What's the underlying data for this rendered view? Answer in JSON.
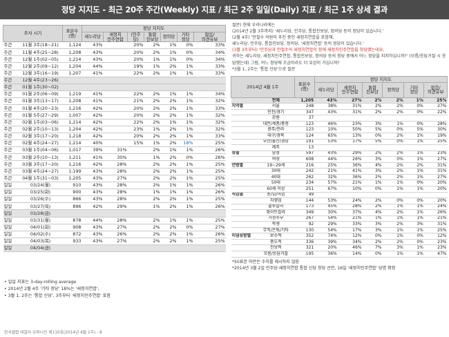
{
  "title": "정당 지지도 - 최근 20주 주간(Weekly) 지표 / 최근 2주 일일(Daily) 지표 / 최근 1주 상세 결과",
  "left_table": {
    "header": {
      "period": "조사 시기",
      "base": "표본수\n(명)",
      "group": "정당 지지도",
      "cols": [
        "새누리당",
        "새정치\n민주연합",
        "(민주당)",
        "통합\n진보당",
        "정의당",
        "기타\n정당",
        "없음/\n의견유보"
      ]
    },
    "rows": [
      {
        "type": "주간",
        "date": "11월 3주(18~21)",
        "base": "1,124",
        "v": [
          "43%",
          "",
          "20%",
          "2%",
          "1%",
          "0%",
          "33%"
        ]
      },
      {
        "type": "주간",
        "date": "11월 4주(25~28)",
        "base": "1,208",
        "v": [
          "43%",
          "",
          "20%",
          "2%",
          "1%",
          "0%",
          "34%"
        ]
      },
      {
        "type": "주간",
        "date": "12월 1주(02~05)",
        "base": "1,214",
        "v": [
          "43%",
          "",
          "20%",
          "1%",
          "1%",
          "0%",
          "34%"
        ]
      },
      {
        "type": "주간",
        "date": "12월 2주(09~12)",
        "base": "1,204",
        "v": [
          "44%",
          "",
          "19%",
          "1%",
          "2%",
          "1%",
          "33%"
        ]
      },
      {
        "type": "주간",
        "date": "12월 3주(16~19)",
        "base": "1,207",
        "v": [
          "41%",
          "",
          "22%",
          "2%",
          "1%",
          "1%",
          "33%"
        ]
      },
      {
        "type": "주간",
        "date": "12월 4주(23~26)",
        "base": "",
        "v": [
          "",
          "",
          "",
          "",
          "",
          "",
          ""
        ],
        "gray": true
      },
      {
        "type": "주간",
        "date": "01월 1주(30~02)",
        "base": "",
        "v": [
          "",
          "",
          "",
          "",
          "",
          "",
          ""
        ],
        "gray": true
      },
      {
        "type": "주간",
        "date": "01월 2주(06~09)",
        "base": "1,219",
        "v": [
          "41%",
          "",
          "22%",
          "2%",
          "1%",
          "1%",
          "34%"
        ]
      },
      {
        "type": "주간",
        "date": "01월 3주(13~17)",
        "base": "1,208",
        "v": [
          "41%",
          "",
          "21%",
          "2%",
          "2%",
          "1%",
          "32%"
        ]
      },
      {
        "type": "주간",
        "date": "01월 4주(20~23)",
        "base": "1,216",
        "v": [
          "42%",
          "",
          "20%",
          "2%",
          "2%",
          "1%",
          "33%"
        ]
      },
      {
        "type": "주간",
        "date": "01월 5주(27~29)",
        "base": "1,007",
        "v": [
          "42%",
          "",
          "20%",
          "2%",
          "2%",
          "1%",
          "32%"
        ]
      },
      {
        "type": "주간",
        "date": "02월 1주(03~06)",
        "base": "1,214",
        "v": [
          "42%",
          "",
          "22%",
          "2%",
          "1%",
          "1%",
          "32%"
        ]
      },
      {
        "type": "주간",
        "date": "02월 2주(10~13)",
        "base": "1,204",
        "v": [
          "42%",
          "",
          "23%",
          "1%",
          "2%",
          "1%",
          "32%"
        ]
      },
      {
        "type": "주간",
        "date": "02월 3주(17~20)",
        "base": "1,218",
        "v": [
          "42%",
          "",
          "20%",
          "2%",
          "2%",
          "1%",
          "33%"
        ]
      },
      {
        "type": "주간",
        "date": "02월 4주(24~27)",
        "base": "1,214",
        "v": [
          "40%",
          "",
          "15%",
          "1%",
          "2%",
          "18%",
          "25%"
        ],
        "hl": 5
      },
      {
        "type": "주간",
        "date": "03월 1주(04~06)",
        "base": "1,017",
        "v": [
          "39%",
          "31%",
          "",
          "2%",
          "1%",
          "1%",
          "26%"
        ],
        "sep": true
      },
      {
        "type": "주간",
        "date": "03월 2주(10~13)",
        "base": "1,211",
        "v": [
          "41%",
          "30%",
          "",
          "1%",
          "2%",
          "0%",
          "26%"
        ]
      },
      {
        "type": "주간",
        "date": "03월 3주(17~20)",
        "base": "1,216",
        "v": [
          "42%",
          "28%",
          "",
          "2%",
          "2%",
          "1%",
          "25%"
        ]
      },
      {
        "type": "주간",
        "date": "03월 4주(24~27)",
        "base": "1,199",
        "v": [
          "43%",
          "28%",
          "",
          "2%",
          "2%",
          "1%",
          "25%"
        ]
      },
      {
        "type": "주간",
        "date": "04월 1주(31~03)",
        "base": "1,205",
        "v": [
          "43%",
          "27%",
          "",
          "2%",
          "2%",
          "1%",
          "25%"
        ]
      },
      {
        "type": "일일",
        "date": "03/24(월)",
        "base": "910",
        "v": [
          "43%",
          "28%",
          "",
          "2%",
          "1%",
          "1%",
          "26%"
        ],
        "sep": true
      },
      {
        "type": "일일",
        "date": "03/25(화)",
        "base": "900",
        "v": [
          "43%",
          "28%",
          "",
          "1%",
          "1%",
          "1%",
          "26%"
        ]
      },
      {
        "type": "일일",
        "date": "03/26(수)",
        "base": "866",
        "v": [
          "43%",
          "28%",
          "",
          "2%",
          "2%",
          "1%",
          "25%"
        ]
      },
      {
        "type": "일일",
        "date": "03/27(목)",
        "base": "896",
        "v": [
          "42%",
          "29%",
          "",
          "1%",
          "2%",
          "1%",
          "26%"
        ]
      },
      {
        "type": "일일",
        "date": "03/28(금)",
        "base": "",
        "v": [
          "",
          "",
          "",
          "",
          "",
          "",
          ""
        ],
        "gray": true
      },
      {
        "type": "일일",
        "date": "03/31(월)",
        "base": "878",
        "v": [
          "44%",
          "28%",
          "",
          "2%",
          "1%",
          "1%",
          "25%"
        ],
        "sep": true
      },
      {
        "type": "일일",
        "date": "04/01(화)",
        "base": "908",
        "v": [
          "43%",
          "27%",
          "",
          "2%",
          "2%",
          "0%",
          "27%"
        ]
      },
      {
        "type": "일일",
        "date": "04/02(수)",
        "base": "872",
        "v": [
          "43%",
          "26%",
          "",
          "2%",
          "2%",
          "1%",
          "26%"
        ]
      },
      {
        "type": "일일",
        "date": "04/03(목)",
        "base": "933",
        "v": [
          "43%",
          "27%",
          "",
          "2%",
          "2%",
          "1%",
          "25%"
        ]
      },
      {
        "type": "일일",
        "date": "04/04(금)",
        "base": "",
        "v": [
          "",
          "",
          "",
          "",
          "",
          "",
          ""
        ],
        "gray": true
      }
    ]
  },
  "left_notes": [
    "• 일일 지표는 3-day-rolling average",
    "• 2014년 2월 4주 '기타 정당' 18%는 '새정치연합',",
    "• 3월 1, 2주는 '통합 신당', 3주부터 '새정치민주연합' 포함"
  ],
  "credit": "한국갤럽 데일리 오피니언 제110호(2014년 4월 1주) - 8",
  "right_notes": [
    {
      "text": "질문) 현재 우리나라에는",
      "red": false
    },
    {
      "text": "(2014년 2월 3주까지) '새누리당, 민주당, 통합진보당, 정의당 등의 정당이 있습니다.'",
      "red": false
    },
    {
      "text": "(2월 4주) '안철수 의원이 추진 중인 새정치연합을 포함해,",
      "red": false
    },
    {
      "text": "새누리당, 민주당, 통합진보당, 정의당, '새정치연합' 등의 정당이 있습니다.'",
      "red": false
    },
    {
      "text": "(3월 3주부터) '민주당과 안철수의 새정치연합이 함께 새정치민주연합을 창당했는데요,",
      "red": true
    },
    {
      "text": "귀하는 새누리당, 새정치민주연합, 통합진보당, 정의당 등의 정당 중에서 어느 정당을 지지하십니까?' (모름/응답거절 시 응답했는데) 그럼, 어느 정당에 조금이라도 더 호감이 가십니까?",
      "red": false
    },
    {
      "text": "*3월 1, 2주는 '통합 신당'으로 질문",
      "red": false
    }
  ],
  "right_table": {
    "header": {
      "period": "2014년 4월 1주",
      "base": "표본수\n(명)",
      "group": "정당 지지도",
      "cols": [
        "새누리당",
        "새정치\n민주연합",
        "통합\n진보당",
        "정의당",
        "기타\n정당",
        "없음/\n의견유보"
      ]
    },
    "rows": [
      {
        "g": "",
        "s": "전체",
        "base": "1,205",
        "v": [
          "43%",
          "27%",
          "2%",
          "2%",
          "1%",
          "25%"
        ],
        "total": true
      },
      {
        "g": "지역별",
        "s": "서울",
        "base": "248",
        "v": [
          "38%",
          "31%",
          "2%",
          "2%",
          "0%",
          "27%"
        ]
      },
      {
        "g": "",
        "s": "인천/경기",
        "base": "347",
        "v": [
          "43%",
          "31%",
          "2%",
          "2%",
          "0%",
          "22%"
        ]
      },
      {
        "g": "",
        "s": "강원",
        "base": "37",
        "v": [
          "",
          "",
          "",
          "",
          "",
          ""
        ]
      },
      {
        "g": "",
        "s": "대전/세종/충청",
        "base": "123",
        "v": [
          "46%",
          "23%",
          "3%",
          "1%",
          "0%",
          "28%"
        ]
      },
      {
        "g": "",
        "s": "광주/전라",
        "base": "123",
        "v": [
          "10%",
          "50%",
          "5%",
          "0%",
          "5%",
          "30%"
        ]
      },
      {
        "g": "",
        "s": "대구/경북",
        "base": "124",
        "v": [
          "65%",
          "13%",
          "0%",
          "2%",
          "1%",
          "19%"
        ]
      },
      {
        "g": "",
        "s": "부산/울산/경남",
        "base": "191",
        "v": [
          "53%",
          "17%",
          "5%",
          "0%",
          "1%",
          "25%"
        ]
      },
      {
        "g": "",
        "s": "제주",
        "base": "13",
        "v": [
          "",
          "",
          "",
          "",
          "",
          ""
        ]
      },
      {
        "g": "성별",
        "s": "남성",
        "base": "597",
        "v": [
          "43%",
          "29%",
          "2%",
          "2%",
          "1%",
          "23%"
        ],
        "sep": true
      },
      {
        "g": "",
        "s": "여성",
        "base": "608",
        "v": [
          "44%",
          "26%",
          "3%",
          "0%",
          "1%",
          "27%"
        ]
      },
      {
        "g": "연령별",
        "s": "19~29세",
        "base": "216",
        "v": [
          "25%",
          "36%",
          "4%",
          "2%",
          "2%",
          "31%"
        ],
        "sep": true
      },
      {
        "g": "",
        "s": "30대",
        "base": "242",
        "v": [
          "21%",
          "41%",
          "3%",
          "2%",
          "1%",
          "31%"
        ]
      },
      {
        "g": "",
        "s": "40대",
        "base": "262",
        "v": [
          "32%",
          "36%",
          "2%",
          "2%",
          "1%",
          "27%"
        ]
      },
      {
        "g": "",
        "s": "50대",
        "base": "234",
        "v": [
          "57%",
          "21%",
          "1%",
          "1%",
          "0%",
          "20%"
        ]
      },
      {
        "g": "",
        "s": "60세 이상",
        "base": "251",
        "v": [
          "67%",
          "10%",
          "0%",
          "1%",
          "1%",
          "20%"
        ]
      },
      {
        "g": "직업별",
        "s": "농/임/어업",
        "base": "49",
        "v": [
          "",
          "",
          "",
          "",
          "",
          ""
        ],
        "sep": true
      },
      {
        "g": "",
        "s": "자영업",
        "base": "144",
        "v": [
          "53%",
          "24%",
          "2%",
          "0%",
          "0%",
          "20%"
        ]
      },
      {
        "g": "",
        "s": "블루칼라",
        "base": "173",
        "v": [
          "45%",
          "28%",
          "2%",
          "1%",
          "1%",
          "24%"
        ]
      },
      {
        "g": "",
        "s": "화이트칼라",
        "base": "349",
        "v": [
          "30%",
          "37%",
          "4%",
          "2%",
          "1%",
          "26%"
        ]
      },
      {
        "g": "",
        "s": "가정주부",
        "base": "267",
        "v": [
          "54%",
          "21%",
          "1%",
          "1%",
          "1%",
          "21%"
        ]
      },
      {
        "g": "",
        "s": "학생",
        "base": "92",
        "v": [
          "29%",
          "33%",
          "3%",
          "2%",
          "3%",
          "31%"
        ]
      },
      {
        "g": "",
        "s": "무직/은퇴/기타",
        "base": "130",
        "v": [
          "54%",
          "17%",
          "3%",
          "1%",
          "1%",
          "25%"
        ]
      },
      {
        "g": "이념성향별",
        "s": "보수적",
        "base": "352",
        "v": [
          "74%",
          "12%",
          "0%",
          "1%",
          "0%",
          "12%"
        ],
        "sep": true
      },
      {
        "g": "",
        "s": "중도적",
        "base": "336",
        "v": [
          "39%",
          "34%",
          "2%",
          "2%",
          "0%",
          "23%"
        ]
      },
      {
        "g": "",
        "s": "진보적",
        "base": "321",
        "v": [
          "20%",
          "46%",
          "7%",
          "3%",
          "1%",
          "23%"
        ]
      },
      {
        "g": "",
        "s": "모름/응답거절",
        "base": "195",
        "v": [
          "36%",
          "14%",
          "0%",
          "1%",
          "1%",
          "47%"
        ]
      }
    ]
  },
  "right_footnotes": [
    "*50표본 미만은 수치를 제시하지 않음",
    "*2014년 3월 2일 민주당·새정치연합 통합 신당 창당 선언, 16일 '새정치민주연합' 당명 확정"
  ]
}
